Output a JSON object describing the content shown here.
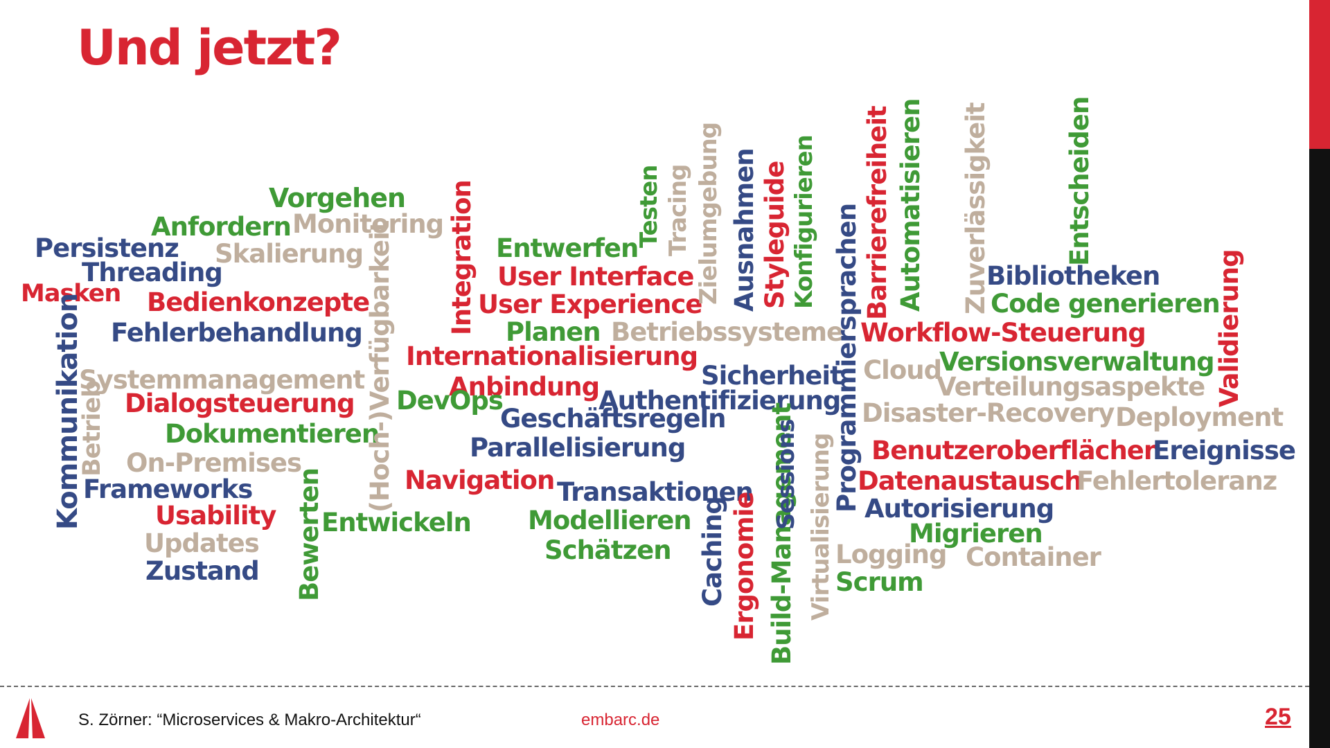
{
  "slide": {
    "title": "Und jetzt?",
    "author": "S. Zörner: “Microservices & Makro-Architektur“",
    "site": "embarc.de",
    "page": "25"
  },
  "colors": {
    "red": "#d82532",
    "green": "#3f9a36",
    "blue": "#354a85",
    "beige": "#bfae9d",
    "black": "#111111"
  },
  "icons": [
    "embarc-sail-logo-icon"
  ],
  "word_cloud": [
    {
      "text": "Vorgehen",
      "color": "green"
    },
    {
      "text": "Anfordern",
      "color": "green"
    },
    {
      "text": "Monitoring",
      "color": "beige"
    },
    {
      "text": "Persistenz",
      "color": "blue"
    },
    {
      "text": "Skalierung",
      "color": "beige"
    },
    {
      "text": "Threading",
      "color": "blue"
    },
    {
      "text": "Masken",
      "color": "red"
    },
    {
      "text": "Bedienkonzepte",
      "color": "red"
    },
    {
      "text": "Fehlerbehandlung",
      "color": "blue"
    },
    {
      "text": "Systemmanagement",
      "color": "beige"
    },
    {
      "text": "Kommunikation",
      "color": "blue"
    },
    {
      "text": "Betrieb",
      "color": "beige"
    },
    {
      "text": "Dialogsteuerung",
      "color": "red"
    },
    {
      "text": "Dokumentieren",
      "color": "green"
    },
    {
      "text": "On-Premises",
      "color": "beige"
    },
    {
      "text": "Frameworks",
      "color": "blue"
    },
    {
      "text": "Usability",
      "color": "red"
    },
    {
      "text": "Updates",
      "color": "beige"
    },
    {
      "text": "Zustand",
      "color": "blue"
    },
    {
      "text": "Bewerten",
      "color": "green"
    },
    {
      "text": "Entwickeln",
      "color": "green"
    },
    {
      "text": "(Hoch-)Verfügbarkeit",
      "color": "beige"
    },
    {
      "text": "Integration",
      "color": "red"
    },
    {
      "text": "Entwerfen",
      "color": "green"
    },
    {
      "text": "User Interface",
      "color": "red"
    },
    {
      "text": "User Experience",
      "color": "red"
    },
    {
      "text": "Planen",
      "color": "green"
    },
    {
      "text": "Betriebssysteme",
      "color": "beige"
    },
    {
      "text": "Internationalisierung",
      "color": "red"
    },
    {
      "text": "Anbindung",
      "color": "red"
    },
    {
      "text": "DevOps",
      "color": "green"
    },
    {
      "text": "Geschäftsregeln",
      "color": "blue"
    },
    {
      "text": "Parallelisierung",
      "color": "blue"
    },
    {
      "text": "Navigation",
      "color": "red"
    },
    {
      "text": "Transaktionen",
      "color": "blue"
    },
    {
      "text": "Modellieren",
      "color": "green"
    },
    {
      "text": "Schätzen",
      "color": "green"
    },
    {
      "text": "Testen",
      "color": "green"
    },
    {
      "text": "Tracing",
      "color": "beige"
    },
    {
      "text": "Zielumgebung",
      "color": "beige"
    },
    {
      "text": "Ausnahmen",
      "color": "blue"
    },
    {
      "text": "Styleguide",
      "color": "red"
    },
    {
      "text": "Konfigurieren",
      "color": "green"
    },
    {
      "text": "Sicherheit",
      "color": "blue"
    },
    {
      "text": "Authentifizierung",
      "color": "blue"
    },
    {
      "text": "Caching",
      "color": "blue"
    },
    {
      "text": "Ergonomie",
      "color": "red"
    },
    {
      "text": "Build-Management",
      "color": "green"
    },
    {
      "text": "Sessions",
      "color": "blue"
    },
    {
      "text": "Virtualisierung",
      "color": "beige"
    },
    {
      "text": "Programmiersprachen",
      "color": "blue"
    },
    {
      "text": "Barrierefreiheit",
      "color": "red"
    },
    {
      "text": "Automatisieren",
      "color": "green"
    },
    {
      "text": "Zuverlässigkeit",
      "color": "beige"
    },
    {
      "text": "Entscheiden",
      "color": "green"
    },
    {
      "text": "Bibliotheken",
      "color": "blue"
    },
    {
      "text": "Code generieren",
      "color": "green"
    },
    {
      "text": "Workflow-Steuerung",
      "color": "red"
    },
    {
      "text": "Versionsverwaltung",
      "color": "green"
    },
    {
      "text": "Cloud",
      "color": "beige"
    },
    {
      "text": "Verteilungsaspekte",
      "color": "beige"
    },
    {
      "text": "Validierung",
      "color": "red"
    },
    {
      "text": "Disaster-Recovery",
      "color": "beige"
    },
    {
      "text": "Deployment",
      "color": "beige"
    },
    {
      "text": "Benutzeroberflächen",
      "color": "red"
    },
    {
      "text": "Ereignisse",
      "color": "blue"
    },
    {
      "text": "Datenaustausch",
      "color": "red"
    },
    {
      "text": "Fehlertoleranz",
      "color": "beige"
    },
    {
      "text": "Autorisierung",
      "color": "blue"
    },
    {
      "text": "Migrieren",
      "color": "green"
    },
    {
      "text": "Logging",
      "color": "beige"
    },
    {
      "text": "Container",
      "color": "beige"
    },
    {
      "text": "Scrum",
      "color": "green"
    }
  ]
}
